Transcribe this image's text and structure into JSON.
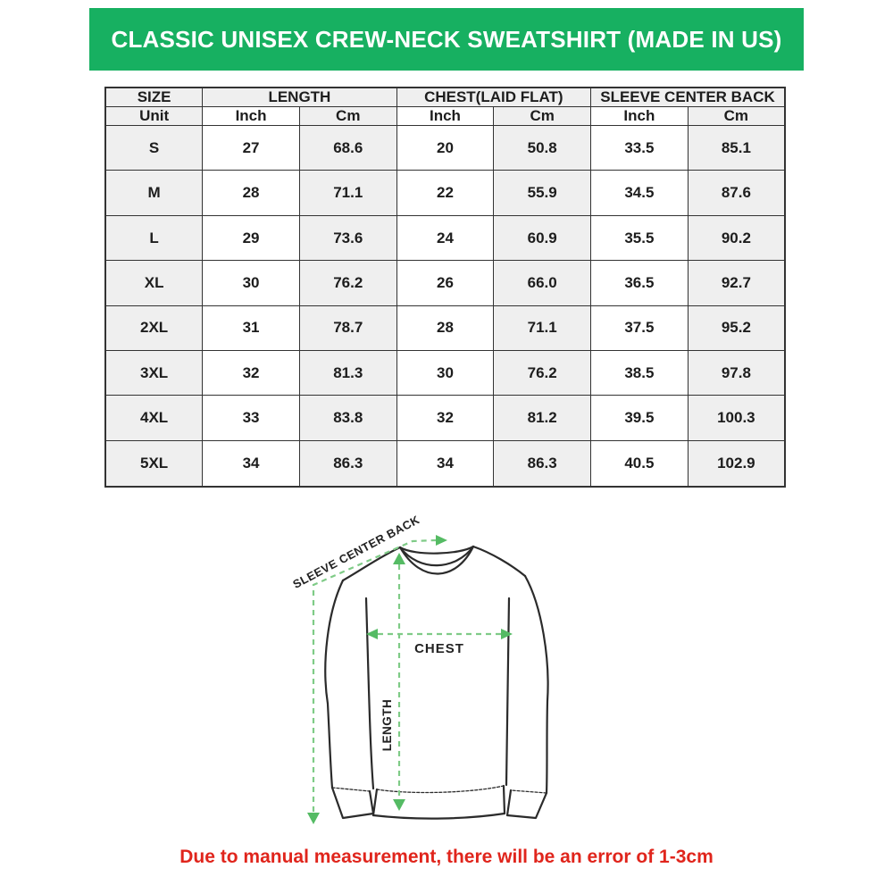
{
  "header": {
    "title": "CLASSIC UNISEX CREW-NECK SWEATSHIRT (MADE IN US)"
  },
  "colors": {
    "banner_green": "#17b061",
    "measure_line_green": "#7fcb87",
    "arrow_green": "#55bb64",
    "note_red": "#e0251c",
    "cell_gray": "#efefef",
    "table_border": "#333333"
  },
  "size_table": {
    "group_headers": [
      "SIZE",
      "LENGTH",
      "CHEST(LAID FLAT)",
      "SLEEVE CENTER BACK"
    ],
    "unit_row": [
      "Unit",
      "Inch",
      "Cm",
      "Inch",
      "Cm",
      "Inch",
      "Cm"
    ],
    "rows": [
      {
        "size": "S",
        "values": [
          "27",
          "68.6",
          "20",
          "50.8",
          "33.5",
          "85.1"
        ]
      },
      {
        "size": "M",
        "values": [
          "28",
          "71.1",
          "22",
          "55.9",
          "34.5",
          "87.6"
        ]
      },
      {
        "size": "L",
        "values": [
          "29",
          "73.6",
          "24",
          "60.9",
          "35.5",
          "90.2"
        ]
      },
      {
        "size": "XL",
        "values": [
          "30",
          "76.2",
          "26",
          "66.0",
          "36.5",
          "92.7"
        ]
      },
      {
        "size": "2XL",
        "values": [
          "31",
          "78.7",
          "28",
          "71.1",
          "37.5",
          "95.2"
        ]
      },
      {
        "size": "3XL",
        "values": [
          "32",
          "81.3",
          "30",
          "76.2",
          "38.5",
          "97.8"
        ]
      },
      {
        "size": "4XL",
        "values": [
          "33",
          "83.8",
          "32",
          "81.2",
          "39.5",
          "100.3"
        ]
      },
      {
        "size": "5XL",
        "values": [
          "34",
          "86.3",
          "34",
          "86.3",
          "40.5",
          "102.9"
        ]
      }
    ]
  },
  "diagram": {
    "labels": {
      "sleeve_center_back": "SLEEVE CENTER BACK",
      "chest": "CHEST",
      "length": "LENGTH"
    }
  },
  "footer": {
    "note": "Due to manual measurement, there will be an error of 1-3cm"
  }
}
